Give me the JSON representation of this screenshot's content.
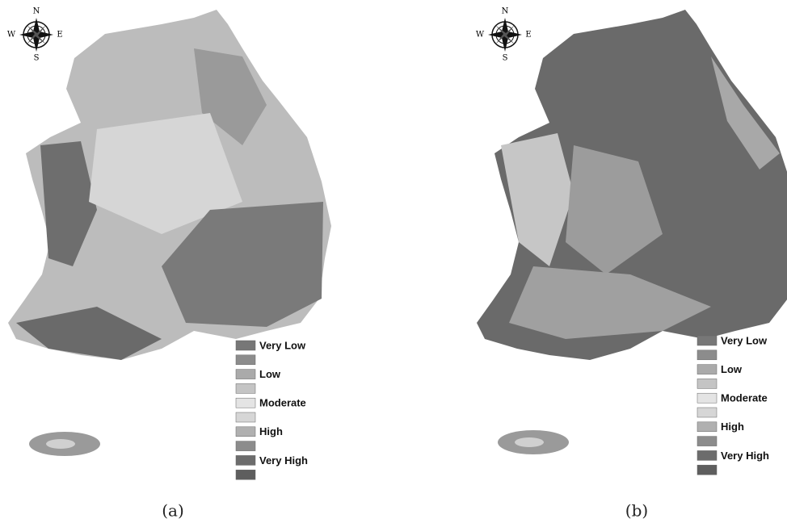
{
  "panels": [
    {
      "caption": "(a)",
      "compass": {
        "north": "N",
        "south": "S",
        "west": "W",
        "east": "E"
      },
      "legend": [
        "Very Low",
        "Low",
        "Moderate",
        "High",
        "Very High"
      ]
    },
    {
      "caption": "(b)",
      "compass": {
        "north": "N",
        "south": "S",
        "west": "W",
        "east": "E"
      },
      "legend": [
        "Very Low",
        "Low",
        "Moderate",
        "High",
        "Very High"
      ]
    }
  ]
}
